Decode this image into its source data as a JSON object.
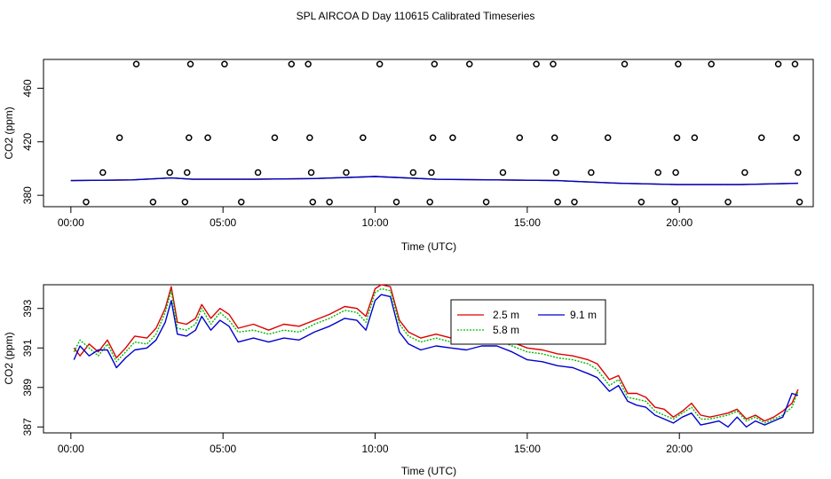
{
  "page_title": "SPL AIRCOA D  Day 110615  Calibrated Timeseries",
  "colors": {
    "c25": "#dd0000",
    "c58": "#00bb00",
    "c91": "#0000cc",
    "axis": "#000000"
  },
  "chart_data": [
    {
      "type": "scatter",
      "name": "top",
      "xlabel": "Time (UTC)",
      "ylabel": "CO2 (ppm)",
      "xlim": [
        -0.9,
        24.4
      ],
      "ylim": [
        371.5,
        481.5
      ],
      "xticks": [
        {
          "v": 0,
          "label": "00:00"
        },
        {
          "v": 5,
          "label": "05:00"
        },
        {
          "v": 10,
          "label": "10:00"
        },
        {
          "v": 15,
          "label": "15:00"
        },
        {
          "v": 20,
          "label": "20:00"
        }
      ],
      "yticks": [
        {
          "v": 380,
          "label": "380"
        },
        {
          "v": 420,
          "label": "420"
        },
        {
          "v": 460,
          "label": "460"
        }
      ],
      "points": [
        {
          "x": 0.5,
          "y": 375
        },
        {
          "x": 1.05,
          "y": 397
        },
        {
          "x": 1.6,
          "y": 423
        },
        {
          "x": 2.15,
          "y": 478
        },
        {
          "x": 2.7,
          "y": 375
        },
        {
          "x": 3.25,
          "y": 397
        },
        {
          "x": 3.75,
          "y": 375
        },
        {
          "x": 3.82,
          "y": 397
        },
        {
          "x": 3.88,
          "y": 423
        },
        {
          "x": 3.93,
          "y": 478
        },
        {
          "x": 4.5,
          "y": 423
        },
        {
          "x": 5.05,
          "y": 478
        },
        {
          "x": 5.6,
          "y": 375
        },
        {
          "x": 6.15,
          "y": 397
        },
        {
          "x": 6.7,
          "y": 423
        },
        {
          "x": 7.25,
          "y": 478
        },
        {
          "x": 7.8,
          "y": 478
        },
        {
          "x": 7.85,
          "y": 423
        },
        {
          "x": 7.9,
          "y": 397
        },
        {
          "x": 7.95,
          "y": 375
        },
        {
          "x": 8.5,
          "y": 375
        },
        {
          "x": 9.05,
          "y": 397
        },
        {
          "x": 9.6,
          "y": 423
        },
        {
          "x": 10.15,
          "y": 478
        },
        {
          "x": 10.7,
          "y": 375
        },
        {
          "x": 11.25,
          "y": 397
        },
        {
          "x": 11.8,
          "y": 375
        },
        {
          "x": 11.85,
          "y": 397
        },
        {
          "x": 11.9,
          "y": 423
        },
        {
          "x": 11.95,
          "y": 478
        },
        {
          "x": 12.55,
          "y": 423
        },
        {
          "x": 13.1,
          "y": 478
        },
        {
          "x": 13.65,
          "y": 375
        },
        {
          "x": 14.2,
          "y": 397
        },
        {
          "x": 14.75,
          "y": 423
        },
        {
          "x": 15.3,
          "y": 478
        },
        {
          "x": 15.85,
          "y": 478
        },
        {
          "x": 15.9,
          "y": 423
        },
        {
          "x": 15.95,
          "y": 397
        },
        {
          "x": 16.0,
          "y": 375
        },
        {
          "x": 16.55,
          "y": 375
        },
        {
          "x": 17.1,
          "y": 397
        },
        {
          "x": 17.65,
          "y": 423
        },
        {
          "x": 18.2,
          "y": 478
        },
        {
          "x": 18.75,
          "y": 375
        },
        {
          "x": 19.3,
          "y": 397
        },
        {
          "x": 19.85,
          "y": 375
        },
        {
          "x": 19.88,
          "y": 397
        },
        {
          "x": 19.92,
          "y": 423
        },
        {
          "x": 19.96,
          "y": 478
        },
        {
          "x": 20.5,
          "y": 423
        },
        {
          "x": 21.05,
          "y": 478
        },
        {
          "x": 21.6,
          "y": 375
        },
        {
          "x": 22.15,
          "y": 397
        },
        {
          "x": 22.7,
          "y": 423
        },
        {
          "x": 23.25,
          "y": 478
        },
        {
          "x": 23.8,
          "y": 478
        },
        {
          "x": 23.85,
          "y": 423
        },
        {
          "x": 23.9,
          "y": 397
        },
        {
          "x": 23.95,
          "y": 375
        }
      ],
      "series": [
        {
          "name": "2.5 m",
          "color_key": "c25",
          "x": [
            0,
            2,
            3.3,
            4,
            6,
            8,
            10,
            12,
            14,
            16,
            18,
            20,
            22,
            23.9
          ],
          "y": [
            391,
            391.5,
            393,
            392,
            392,
            392.5,
            394,
            392,
            391.5,
            391,
            389,
            388,
            388,
            389
          ]
        },
        {
          "name": "5.8 m",
          "color_key": "c58",
          "x": [
            0,
            2,
            3.3,
            4,
            6,
            8,
            10,
            12,
            14,
            16,
            18,
            20,
            22,
            23.9
          ],
          "y": [
            391,
            391.5,
            393,
            392,
            392,
            392.5,
            394,
            392,
            391.5,
            391,
            389,
            388,
            388,
            389
          ]
        },
        {
          "name": "9.1 m",
          "color_key": "c91",
          "x": [
            0,
            2,
            3.3,
            4,
            6,
            8,
            10,
            12,
            14,
            16,
            18,
            20,
            22,
            23.9
          ],
          "y": [
            391,
            391.5,
            393,
            392,
            392,
            392.5,
            394,
            392,
            391.5,
            391,
            389,
            388,
            388,
            389
          ]
        }
      ]
    },
    {
      "type": "line",
      "name": "bottom",
      "xlabel": "Time (UTC)",
      "ylabel": "CO2 (ppm)",
      "xlim": [
        -0.9,
        24.4
      ],
      "ylim": [
        386.7,
        394.2
      ],
      "xticks": [
        {
          "v": 0,
          "label": "00:00"
        },
        {
          "v": 5,
          "label": "05:00"
        },
        {
          "v": 10,
          "label": "10:00"
        },
        {
          "v": 15,
          "label": "15:00"
        },
        {
          "v": 20,
          "label": "20:00"
        }
      ],
      "yticks": [
        {
          "v": 387,
          "label": "387"
        },
        {
          "v": 389,
          "label": "389"
        },
        {
          "v": 391,
          "label": "391"
        },
        {
          "v": 393,
          "label": "393"
        }
      ],
      "legend": {
        "position": "top-center",
        "entries": [
          {
            "label": "2.5 m",
            "color_key": "c25"
          },
          {
            "label": "9.1 m",
            "color_key": "c91"
          },
          {
            "label": "5.8 m",
            "color_key": "c58"
          }
        ]
      },
      "series": [
        {
          "name": "2.5 m",
          "color_key": "c25",
          "x": [
            0.1,
            0.3,
            0.6,
            0.9,
            1.2,
            1.5,
            1.8,
            2.1,
            2.5,
            2.8,
            3.1,
            3.3,
            3.5,
            3.8,
            4.1,
            4.3,
            4.6,
            4.9,
            5.2,
            5.5,
            6.0,
            6.5,
            7.0,
            7.5,
            8.0,
            8.5,
            9.0,
            9.4,
            9.7,
            10.0,
            10.2,
            10.5,
            10.8,
            11.1,
            11.5,
            12.0,
            12.5,
            13.0,
            13.5,
            14.0,
            14.5,
            15.0,
            15.5,
            16.0,
            16.5,
            17.0,
            17.3,
            17.7,
            18.0,
            18.3,
            18.6,
            18.9,
            19.2,
            19.5,
            19.8,
            20.1,
            20.4,
            20.7,
            21.0,
            21.3,
            21.6,
            21.9,
            22.2,
            22.5,
            22.8,
            23.1,
            23.4,
            23.7,
            23.9
          ],
          "y": [
            391.0,
            390.6,
            391.2,
            390.8,
            391.4,
            390.5,
            391.0,
            391.6,
            391.5,
            392.0,
            393.0,
            394.1,
            392.3,
            392.2,
            392.5,
            393.2,
            392.5,
            393.0,
            392.7,
            392.0,
            392.2,
            391.9,
            392.2,
            392.1,
            392.4,
            392.7,
            393.1,
            393.0,
            392.6,
            394.0,
            394.2,
            394.1,
            392.4,
            391.8,
            391.5,
            391.7,
            391.5,
            391.4,
            391.6,
            391.6,
            391.3,
            391.0,
            390.9,
            390.7,
            390.6,
            390.4,
            390.2,
            389.4,
            389.6,
            388.7,
            388.7,
            388.5,
            388.0,
            387.9,
            387.5,
            387.8,
            388.2,
            387.6,
            387.5,
            387.6,
            387.7,
            387.9,
            387.4,
            387.6,
            387.3,
            387.5,
            387.8,
            388.2,
            388.9
          ]
        },
        {
          "name": "5.8 m",
          "color_key": "c58",
          "x": [
            0.1,
            0.3,
            0.6,
            0.9,
            1.2,
            1.5,
            1.8,
            2.1,
            2.5,
            2.8,
            3.1,
            3.3,
            3.5,
            3.8,
            4.1,
            4.3,
            4.6,
            4.9,
            5.2,
            5.5,
            6.0,
            6.5,
            7.0,
            7.5,
            8.0,
            8.5,
            9.0,
            9.4,
            9.7,
            10.0,
            10.2,
            10.5,
            10.8,
            11.1,
            11.5,
            12.0,
            12.5,
            13.0,
            13.5,
            14.0,
            14.5,
            15.0,
            15.5,
            16.0,
            16.5,
            17.0,
            17.3,
            17.7,
            18.0,
            18.3,
            18.6,
            18.9,
            19.2,
            19.5,
            19.8,
            20.1,
            20.4,
            20.7,
            21.0,
            21.3,
            21.6,
            21.9,
            22.2,
            22.5,
            22.8,
            23.1,
            23.4,
            23.7,
            23.9
          ],
          "y": [
            390.8,
            391.4,
            391.0,
            390.6,
            391.2,
            390.3,
            390.8,
            391.3,
            391.2,
            391.7,
            392.8,
            393.9,
            392.0,
            391.9,
            392.2,
            393.0,
            392.2,
            392.8,
            392.4,
            391.8,
            391.9,
            391.7,
            391.9,
            391.8,
            392.2,
            392.5,
            392.9,
            392.8,
            392.3,
            393.8,
            394.0,
            393.9,
            392.2,
            391.6,
            391.3,
            391.5,
            391.3,
            391.2,
            391.4,
            391.4,
            391.1,
            390.8,
            390.7,
            390.5,
            390.4,
            390.2,
            389.9,
            389.1,
            389.4,
            388.5,
            388.4,
            388.3,
            387.8,
            387.6,
            387.4,
            387.7,
            388.0,
            387.4,
            387.4,
            387.5,
            387.6,
            387.8,
            387.3,
            387.5,
            387.2,
            387.4,
            387.6,
            388.0,
            388.8
          ]
        },
        {
          "name": "9.1 m",
          "color_key": "c91",
          "x": [
            0.1,
            0.3,
            0.6,
            0.9,
            1.2,
            1.5,
            1.8,
            2.1,
            2.5,
            2.8,
            3.1,
            3.3,
            3.5,
            3.8,
            4.1,
            4.3,
            4.6,
            4.9,
            5.2,
            5.5,
            6.0,
            6.5,
            7.0,
            7.5,
            8.0,
            8.5,
            9.0,
            9.4,
            9.7,
            10.0,
            10.2,
            10.5,
            10.8,
            11.1,
            11.5,
            12.0,
            12.5,
            13.0,
            13.5,
            14.0,
            14.5,
            15.0,
            15.5,
            16.0,
            16.5,
            17.0,
            17.3,
            17.7,
            18.0,
            18.3,
            18.6,
            18.9,
            19.2,
            19.5,
            19.8,
            20.1,
            20.4,
            20.7,
            21.0,
            21.3,
            21.6,
            21.9,
            22.2,
            22.5,
            22.8,
            23.1,
            23.4,
            23.7,
            23.9
          ],
          "y": [
            390.4,
            391.1,
            390.6,
            390.9,
            390.9,
            390.0,
            390.5,
            390.9,
            391.0,
            391.4,
            392.3,
            393.4,
            391.7,
            391.6,
            391.9,
            392.6,
            391.9,
            392.4,
            392.1,
            391.3,
            391.5,
            391.3,
            391.5,
            391.4,
            391.8,
            392.1,
            392.5,
            392.4,
            391.9,
            393.4,
            393.7,
            393.6,
            391.8,
            391.2,
            390.9,
            391.1,
            391.0,
            390.9,
            391.1,
            391.1,
            390.8,
            390.4,
            390.3,
            390.1,
            390.0,
            389.7,
            389.5,
            388.8,
            389.1,
            388.3,
            388.1,
            388.0,
            387.6,
            387.4,
            387.2,
            387.5,
            387.7,
            387.1,
            387.2,
            387.3,
            387.0,
            387.5,
            387.0,
            387.3,
            387.1,
            387.3,
            387.5,
            388.7,
            388.6
          ]
        }
      ]
    }
  ]
}
